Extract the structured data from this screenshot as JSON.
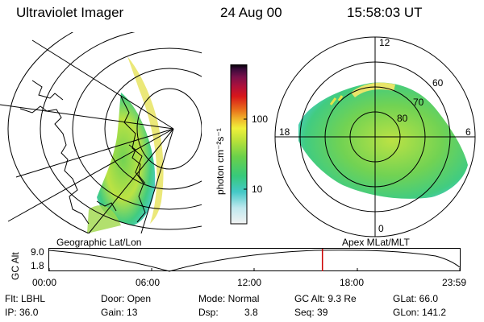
{
  "header": {
    "instrument": "Ultraviolet Imager",
    "date": "24 Aug 00",
    "time": "15:58:03 UT"
  },
  "colorbar": {
    "unit_label": "photon cm⁻²s⁻¹",
    "ticks": [
      "100",
      "10"
    ],
    "colors": [
      "#f2f2f2",
      "#bfe8ee",
      "#44c9c7",
      "#37c97a",
      "#6ad04a",
      "#b8e13a",
      "#f0f03a",
      "#f0b22a",
      "#e86a1a",
      "#d8161a",
      "#b0103a",
      "#7a104a",
      "#3a0a3a",
      "#000000"
    ]
  },
  "left_panel": {
    "label": "Geographic Lat/Lon"
  },
  "right_panel": {
    "label": "Apex MLat/MLT",
    "lat_labels": [
      "60",
      "70",
      "80"
    ],
    "mlt_labels": {
      "top": "12",
      "left": "18",
      "right": "6",
      "bottom": "0"
    }
  },
  "timeline": {
    "axis_label": "GC Alt",
    "y_ticks": [
      "9.0",
      "1.8"
    ],
    "x_ticks": [
      "00:00",
      "06:00",
      "12:00",
      "18:00",
      "23:59"
    ],
    "current_time_hours": 15.97,
    "marker_color": "#cc0000"
  },
  "info": {
    "flt": "Flt: LBHL",
    "door": "Door: Open",
    "mode": "Mode: Normal",
    "gcalt": "GC Alt: 9.3 Re",
    "glat": "GLat: 66.0",
    "ip": "IP: 36.0",
    "gain": "Gain: 13",
    "dsp": "Dsp:",
    "dsp_val": "3.8",
    "seq": "Seq: 39",
    "glon": "GLon: 141.2"
  }
}
